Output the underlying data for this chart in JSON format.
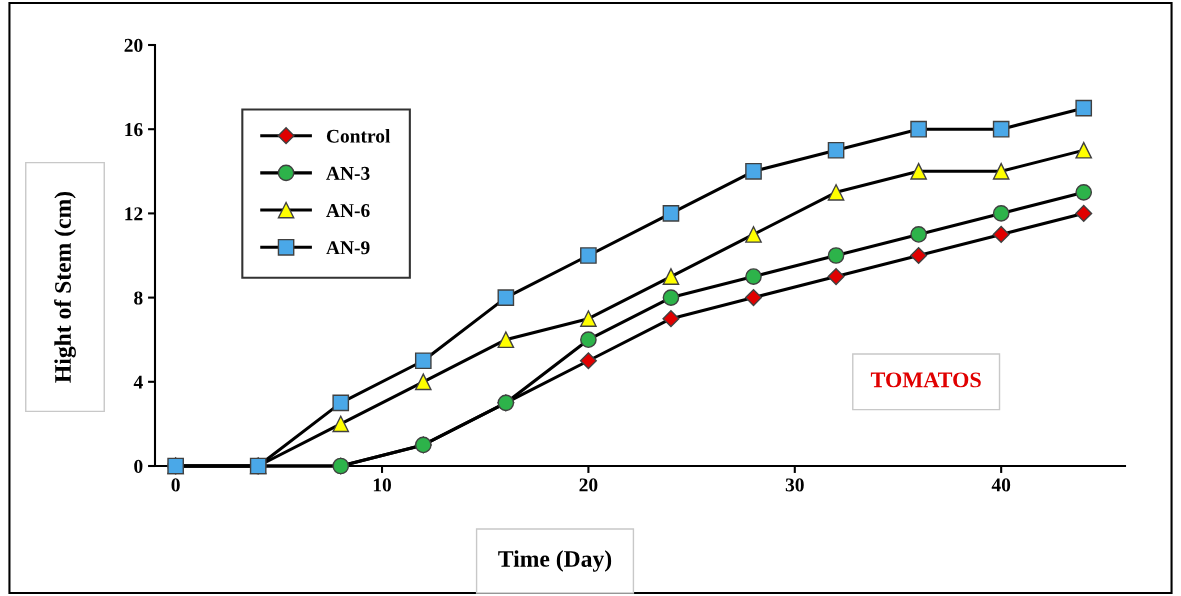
{
  "chart_data": {
    "type": "line",
    "xlabel": "Time (Day)",
    "ylabel": "Hight of Stem (cm)",
    "x": [
      0,
      4,
      8,
      12,
      16,
      20,
      24,
      28,
      32,
      36,
      40,
      44
    ],
    "series": [
      {
        "name": "Control",
        "color": "#e00000",
        "marker": "diamond",
        "values": [
          0,
          0,
          0,
          1,
          3,
          5,
          7,
          8,
          9,
          10,
          11,
          12
        ]
      },
      {
        "name": "AN-3",
        "color": "#2db34a",
        "marker": "circle",
        "values": [
          0,
          0,
          0,
          1,
          3,
          6,
          8,
          9,
          10,
          11,
          12,
          13
        ]
      },
      {
        "name": "AN-6",
        "color": "#ffff00",
        "marker": "triangle",
        "values": [
          0,
          0,
          2,
          4,
          6,
          7,
          9,
          11,
          13,
          14,
          14,
          15
        ]
      },
      {
        "name": "AN-9",
        "color": "#4aa8e8",
        "marker": "square",
        "values": [
          0,
          0,
          3,
          5,
          8,
          10,
          12,
          14,
          15,
          16,
          16,
          17
        ]
      }
    ],
    "xlim": [
      -1,
      46
    ],
    "xticks": [
      0,
      10,
      20,
      30,
      40
    ],
    "ylim": [
      0,
      20
    ],
    "yticks": [
      0,
      4,
      8,
      12,
      16,
      20
    ],
    "annotations": [
      "TOMATOS"
    ],
    "grid": false,
    "legend": "top left",
    "line_style": "solid"
  }
}
